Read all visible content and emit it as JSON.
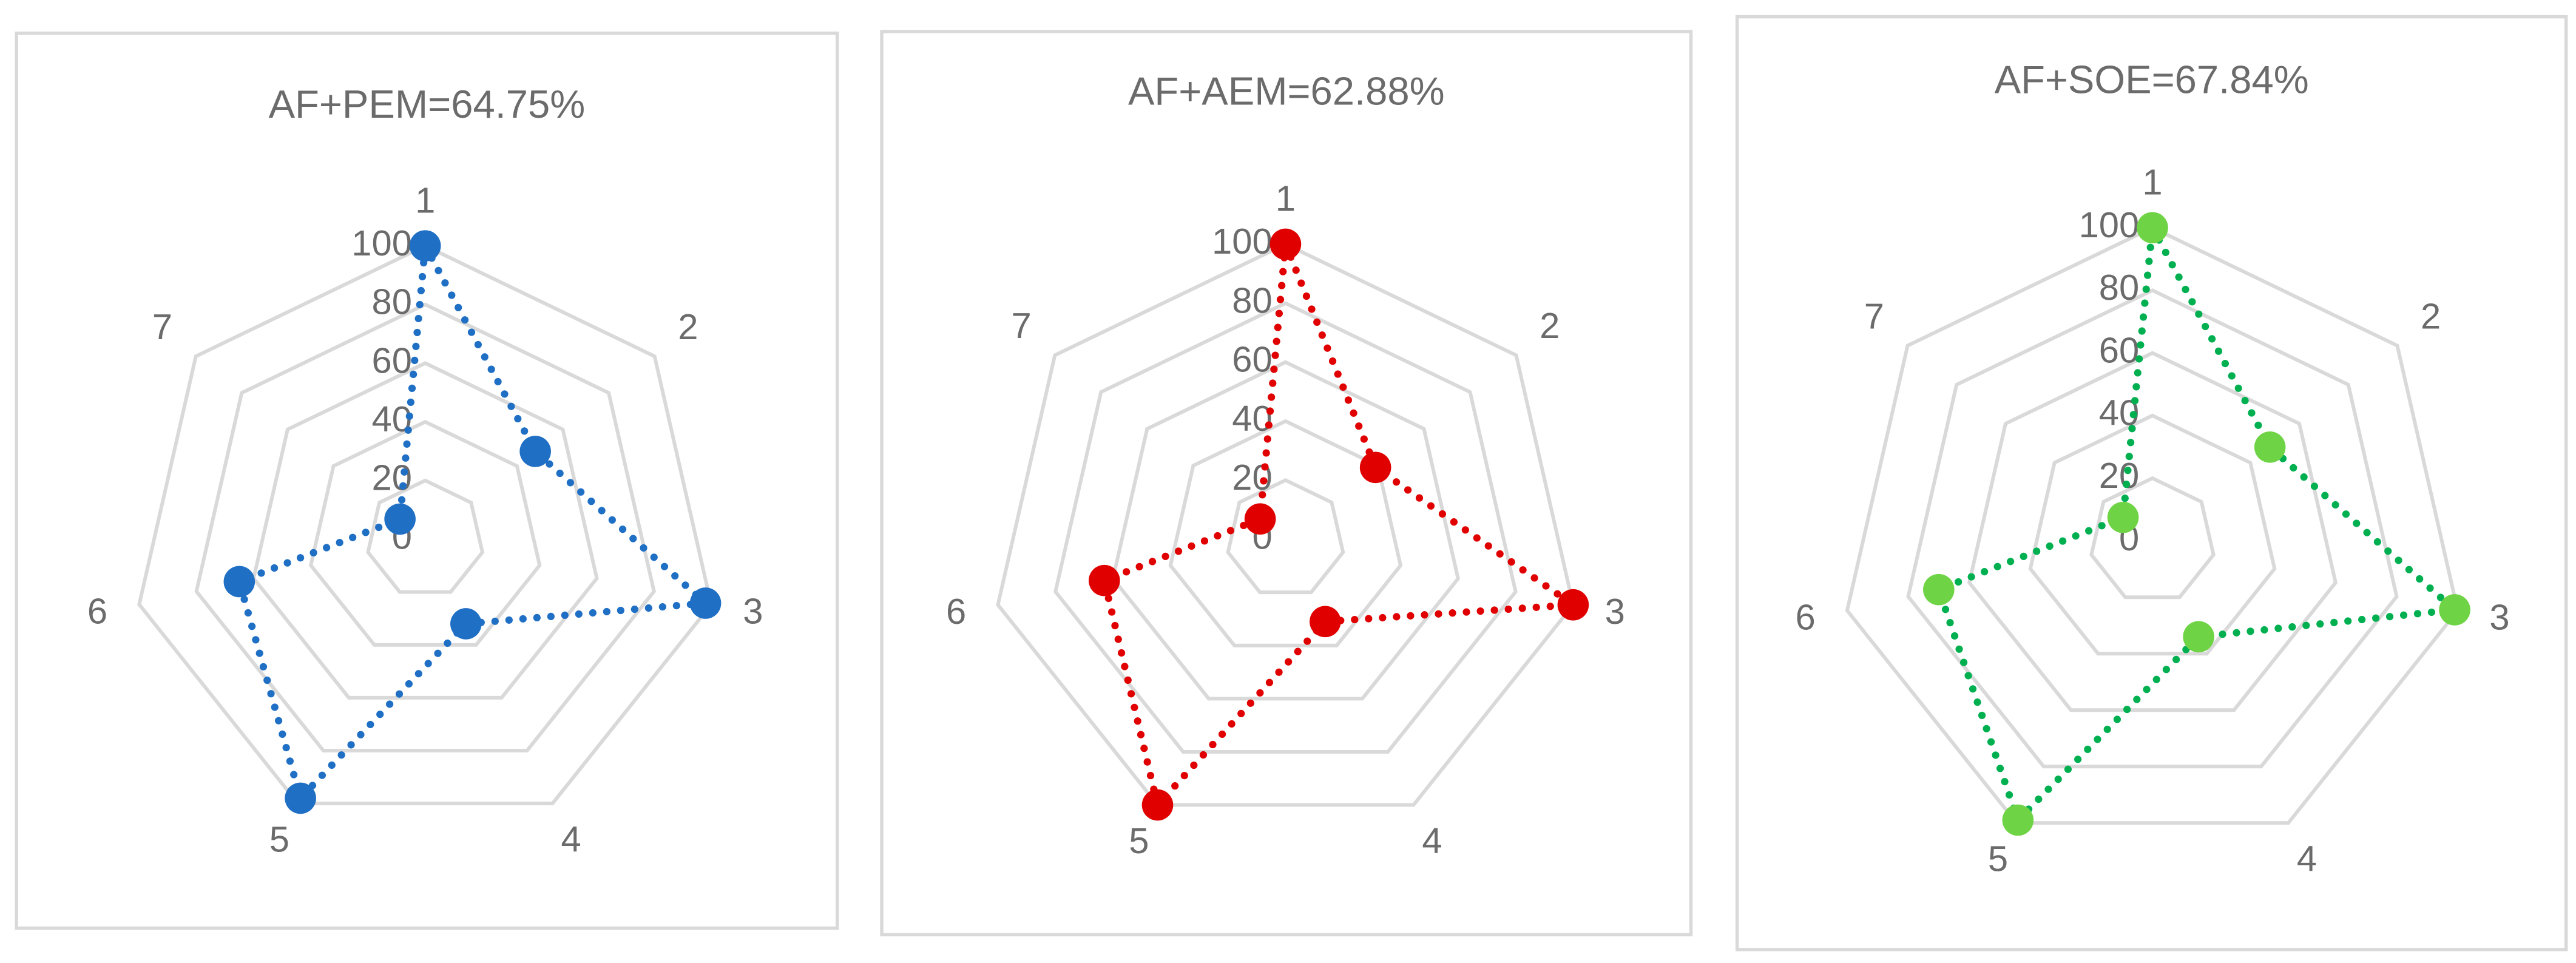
{
  "chart_data": [
    {
      "type": "radar",
      "title": "AF+PEM=64.75%",
      "categories": [
        "1",
        "2",
        "3",
        "4",
        "5",
        "6",
        "7"
      ],
      "values": [
        100,
        48,
        98,
        32,
        98,
        65,
        11
      ],
      "color": "#1f6fc5",
      "marker_color": "#1f6fc5",
      "rlim": [
        0,
        100
      ],
      "rticks": [
        0,
        20,
        40,
        60,
        80,
        100
      ],
      "grid": true
    },
    {
      "type": "radar",
      "title": "AF+AEM=62.88%",
      "categories": [
        "1",
        "2",
        "3",
        "4",
        "5",
        "6",
        "7"
      ],
      "values": [
        100,
        39,
        100,
        31,
        100,
        63,
        11
      ],
      "color": "#e00000",
      "marker_color": "#e00000",
      "rlim": [
        0,
        100
      ],
      "rticks": [
        0,
        20,
        40,
        60,
        80,
        100
      ],
      "grid": true
    },
    {
      "type": "radar",
      "title": "AF+SOE=67.84%",
      "categories": [
        "1",
        "2",
        "3",
        "4",
        "5",
        "6",
        "7"
      ],
      "values": [
        100,
        48,
        99,
        34,
        99,
        70,
        12
      ],
      "color": "#00b050",
      "marker_color": "#6fd445",
      "rlim": [
        0,
        100
      ],
      "rticks": [
        0,
        20,
        40,
        60,
        80,
        100
      ],
      "grid": true
    }
  ]
}
